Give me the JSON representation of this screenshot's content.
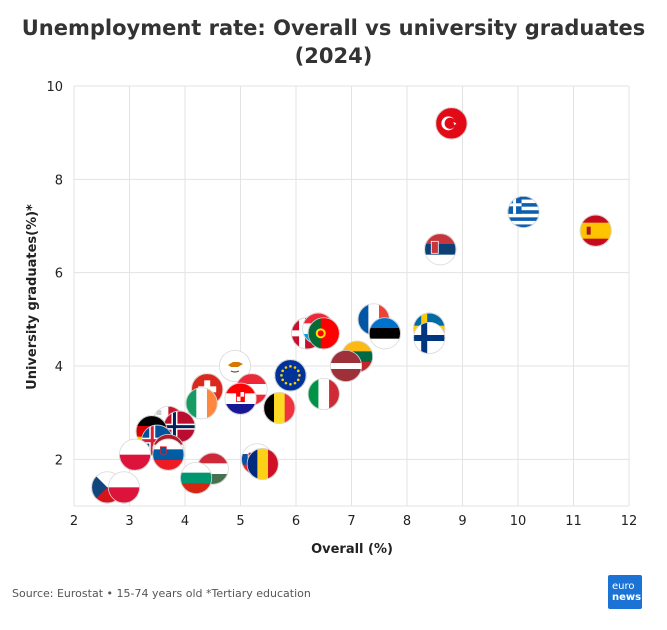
{
  "title_line1": "Unemployment rate: Overall vs university graduates",
  "title_line2": "(2024)",
  "source": "Source: Eurostat • 15-74 years old *Tertiary education",
  "logo": {
    "line1": "euro",
    "line2": "news."
  },
  "chart_data": {
    "type": "scatter",
    "title": "Unemployment rate: Overall vs university graduates (2024)",
    "xlabel": "Overall (%)",
    "ylabel": "University graduates(%)*",
    "xlim": [
      2,
      12
    ],
    "ylim": [
      1,
      10
    ],
    "xticks": [
      "2",
      "3",
      "4",
      "5",
      "6",
      "7",
      "8",
      "9",
      "10",
      "11",
      "12"
    ],
    "yticks": [
      "2",
      "4",
      "6",
      "8",
      "10"
    ],
    "grid": true,
    "legend": "none",
    "markers": "country flags",
    "points": [
      {
        "flag": "turkey",
        "x": 8.8,
        "y": 9.2
      },
      {
        "flag": "greece",
        "x": 10.1,
        "y": 7.3
      },
      {
        "flag": "spain",
        "x": 11.4,
        "y": 6.9
      },
      {
        "flag": "serbia",
        "x": 8.6,
        "y": 6.5
      },
      {
        "flag": "france",
        "x": 7.4,
        "y": 5.0
      },
      {
        "flag": "estonia",
        "x": 7.6,
        "y": 4.7
      },
      {
        "flag": "sweden",
        "x": 8.4,
        "y": 4.8
      },
      {
        "flag": "finland",
        "x": 8.4,
        "y": 4.6
      },
      {
        "flag": "denmark",
        "x": 6.2,
        "y": 4.7
      },
      {
        "flag": "luxembourg",
        "x": 6.4,
        "y": 4.8
      },
      {
        "flag": "portugal",
        "x": 6.5,
        "y": 4.7
      },
      {
        "flag": "lithuania",
        "x": 7.1,
        "y": 4.2
      },
      {
        "flag": "latvia",
        "x": 6.9,
        "y": 4.0
      },
      {
        "flag": "cyprus",
        "x": 4.9,
        "y": 4.0
      },
      {
        "flag": "eu",
        "x": 5.9,
        "y": 3.8
      },
      {
        "flag": "switzerland",
        "x": 4.4,
        "y": 3.5
      },
      {
        "flag": "austria",
        "x": 5.2,
        "y": 3.5
      },
      {
        "flag": "ireland",
        "x": 4.3,
        "y": 3.2
      },
      {
        "flag": "croatia",
        "x": 5.0,
        "y": 3.3
      },
      {
        "flag": "italy",
        "x": 6.5,
        "y": 3.4
      },
      {
        "flag": "belgium",
        "x": 5.7,
        "y": 3.1
      },
      {
        "flag": "malta",
        "x": 3.7,
        "y": 2.8
      },
      {
        "flag": "norway",
        "x": 3.9,
        "y": 2.7
      },
      {
        "flag": "germany",
        "x": 3.4,
        "y": 2.6
      },
      {
        "flag": "iceland",
        "x": 3.5,
        "y": 2.4
      },
      {
        "flag": "netherlands",
        "x": 3.7,
        "y": 2.2
      },
      {
        "flag": "slovenia",
        "x": 3.7,
        "y": 2.1
      },
      {
        "flag": "poland",
        "x": 3.1,
        "y": 2.1
      },
      {
        "flag": "hungary",
        "x": 4.5,
        "y": 1.8
      },
      {
        "flag": "bulgaria",
        "x": 4.2,
        "y": 1.6
      },
      {
        "flag": "slovakia",
        "x": 5.3,
        "y": 2.0
      },
      {
        "flag": "romania",
        "x": 5.4,
        "y": 1.9
      },
      {
        "flag": "czechia",
        "x": 2.6,
        "y": 1.4
      },
      {
        "flag": "poland",
        "x": 2.9,
        "y": 1.4
      }
    ]
  }
}
